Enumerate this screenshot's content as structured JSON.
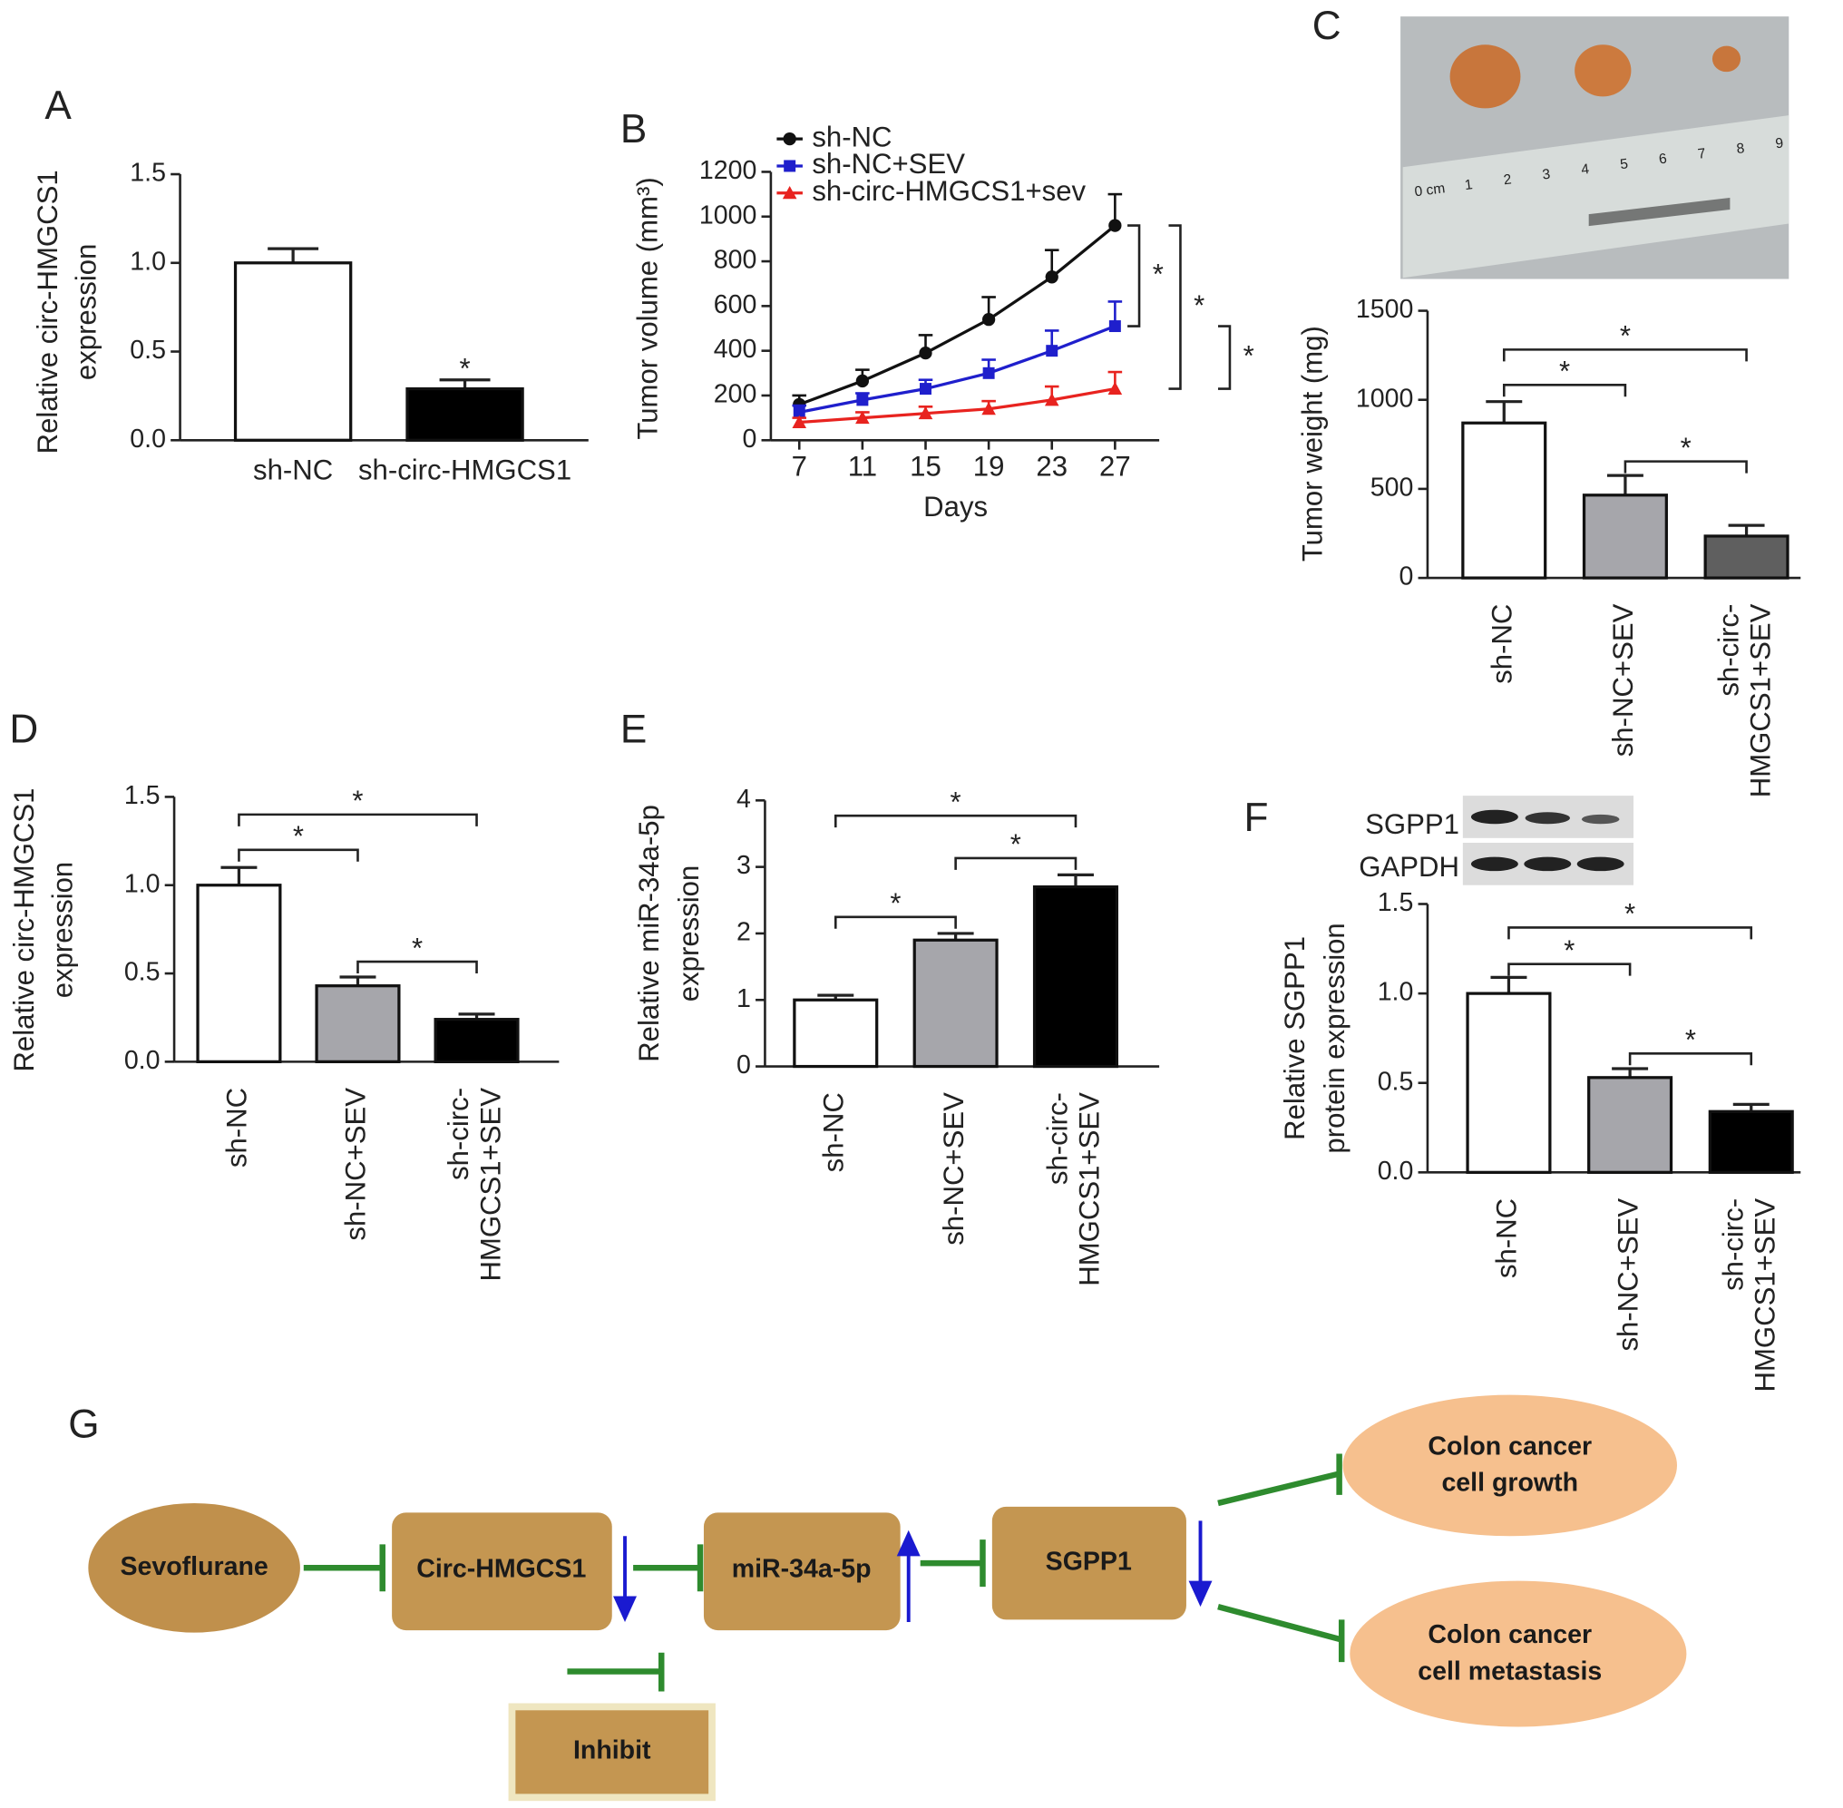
{
  "chart_data": [
    {
      "panel": "A",
      "type": "bar",
      "ylabel": [
        "Relative circ-HMGCS1",
        "expression"
      ],
      "categories": [
        "sh-NC",
        "sh-circ-HMGCS1"
      ],
      "values": [
        1.0,
        0.29
      ],
      "errors": [
        0.08,
        0.05
      ],
      "colors": [
        "#ffffff",
        "#000000"
      ],
      "ylim": [
        0,
        1.5
      ],
      "yticks": [
        {
          "value": 0,
          "label": "0.0"
        },
        0.5,
        {
          "value": 1,
          "label": "1.0"
        },
        1.5
      ],
      "significance": [
        {
          "bars": [
            1
          ],
          "label": "*"
        }
      ],
      "category_orientation": "horizontal"
    },
    {
      "panel": "B",
      "type": "line",
      "xlabel": "Days",
      "ylabel": [
        "Tumor volume (mm³)"
      ],
      "x": [
        7,
        11,
        15,
        19,
        23,
        27
      ],
      "xlim": [
        5.2,
        29.8
      ],
      "xticks": [
        7,
        11,
        15,
        19,
        23,
        27
      ],
      "ylim": [
        0,
        1200
      ],
      "yticks": [
        0,
        200,
        400,
        600,
        800,
        1000,
        1200
      ],
      "legend": "upper left",
      "series": [
        {
          "name": "sh-NC",
          "color": "#111111",
          "marker": "circle",
          "values": [
            160,
            265,
            390,
            540,
            730,
            960
          ],
          "errors": [
            40,
            50,
            80,
            100,
            120,
            140
          ]
        },
        {
          "name": "sh-NC+SEV",
          "color": "#1f1fcc",
          "marker": "square",
          "values": [
            125,
            180,
            230,
            300,
            400,
            510
          ],
          "errors": [
            30,
            30,
            40,
            60,
            90,
            110
          ]
        },
        {
          "name": "sh-circ-HMGCS1+sev",
          "color": "#e8231f",
          "marker": "triangle",
          "values": [
            80,
            100,
            120,
            140,
            180,
            230
          ],
          "errors": [
            20,
            25,
            30,
            35,
            60,
            75
          ]
        }
      ],
      "significance": [
        {
          "series": [
            0,
            1
          ],
          "label": "*"
        },
        {
          "series": [
            0,
            2
          ],
          "label": "*"
        },
        {
          "series": [
            1,
            2
          ],
          "label": "*"
        }
      ]
    },
    {
      "panel": "C",
      "type": "bar",
      "ylabel": [
        "Tumor weight (mg)"
      ],
      "categories": [
        [
          "sh-NC"
        ],
        [
          "sh-NC+SEV"
        ],
        [
          "sh-circ-",
          "HMGCS1+SEV"
        ]
      ],
      "values": [
        870,
        465,
        235
      ],
      "errors": [
        120,
        110,
        60
      ],
      "colors": [
        "#ffffff",
        "#a6a6ab",
        "#5f5f5f"
      ],
      "ylim": [
        0,
        1500
      ],
      "yticks": [
        0,
        500,
        1000,
        1500
      ],
      "significance": [
        {
          "bars": [
            0,
            1
          ],
          "label": "*"
        },
        {
          "bars": [
            0,
            2
          ],
          "label": "*"
        },
        {
          "bars": [
            1,
            2
          ],
          "label": "*"
        }
      ],
      "category_orientation": "vertical",
      "photo_labels": [
        "0 cm",
        "1",
        "2",
        "3",
        "4",
        "5",
        "6",
        "7",
        "8",
        "9"
      ]
    },
    {
      "panel": "D",
      "type": "bar",
      "ylabel": [
        "Relative circ-HMGCS1",
        "expression"
      ],
      "categories": [
        [
          "sh-NC"
        ],
        [
          "sh-NC+SEV"
        ],
        [
          "sh-circ-",
          "HMGCS1+SEV"
        ]
      ],
      "values": [
        1.0,
        0.43,
        0.24
      ],
      "errors": [
        0.1,
        0.05,
        0.03
      ],
      "colors": [
        "#ffffff",
        "#a6a6ab",
        "#000000"
      ],
      "ylim": [
        0,
        1.5
      ],
      "yticks": [
        {
          "value": 0,
          "label": "0.0"
        },
        0.5,
        {
          "value": 1,
          "label": "1.0"
        },
        1.5
      ],
      "significance": [
        {
          "bars": [
            0,
            1
          ],
          "label": "*"
        },
        {
          "bars": [
            0,
            2
          ],
          "label": "*"
        },
        {
          "bars": [
            1,
            2
          ],
          "label": "*"
        }
      ],
      "category_orientation": "vertical"
    },
    {
      "panel": "E",
      "type": "bar",
      "ylabel": [
        "Relative miR-34a-5p",
        "expression"
      ],
      "categories": [
        [
          "sh-NC"
        ],
        [
          "sh-NC+SEV"
        ],
        [
          "sh-circ-",
          "HMGCS1+SEV"
        ]
      ],
      "values": [
        1.0,
        1.9,
        2.7
      ],
      "errors": [
        0.07,
        0.1,
        0.18
      ],
      "colors": [
        "#ffffff",
        "#a6a6ab",
        "#000000"
      ],
      "ylim": [
        0,
        4
      ],
      "yticks": [
        0,
        1,
        2,
        3,
        4
      ],
      "significance": [
        {
          "bars": [
            0,
            1
          ],
          "label": "*"
        },
        {
          "bars": [
            0,
            2
          ],
          "label": "*"
        },
        {
          "bars": [
            1,
            2
          ],
          "label": "*"
        }
      ],
      "category_orientation": "vertical"
    },
    {
      "panel": "F",
      "type": "bar",
      "ylabel": [
        "Relative SGPP1",
        "protein expression"
      ],
      "categories": [
        [
          "sh-NC"
        ],
        [
          "sh-NC+SEV"
        ],
        [
          "sh-circ-",
          "HMGCS1+SEV"
        ]
      ],
      "values": [
        1.0,
        0.53,
        0.34
      ],
      "errors": [
        0.09,
        0.05,
        0.04
      ],
      "colors": [
        "#ffffff",
        "#a6a6ab",
        "#000000"
      ],
      "ylim": [
        0,
        1.5
      ],
      "yticks": [
        {
          "value": 0,
          "label": "0.0"
        },
        0.5,
        {
          "value": 1,
          "label": "1.0"
        },
        1.5
      ],
      "significance": [
        {
          "bars": [
            0,
            1
          ],
          "label": "*"
        },
        {
          "bars": [
            0,
            2
          ],
          "label": "*"
        },
        {
          "bars": [
            1,
            2
          ],
          "label": "*"
        }
      ],
      "category_orientation": "vertical",
      "blot_labels": [
        "SGPP1",
        "GAPDH"
      ]
    }
  ],
  "diagram": {
    "panel": "G",
    "nodes": [
      {
        "label": [
          "Sevoflurane"
        ]
      },
      {
        "label": [
          "Circ-HMGCS1"
        ]
      },
      {
        "label": [
          "miR-34a-5p"
        ]
      },
      {
        "label": [
          "SGPP1"
        ]
      },
      {
        "label": [
          "Colon cancer",
          "cell growth"
        ]
      },
      {
        "label": [
          "Colon cancer",
          "cell metastasis"
        ]
      }
    ],
    "legend": "Inhibit"
  }
}
